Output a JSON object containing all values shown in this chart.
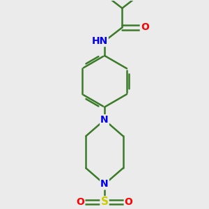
{
  "bg_color": "#ebebeb",
  "bond_color": "#3a7a28",
  "bond_width": 1.8,
  "atom_colors": {
    "N": "#0000ee",
    "O": "#ff0000",
    "S": "#cccc00",
    "H": "#555555",
    "C": "#3a7a28"
  },
  "font_size": 10,
  "fig_size": [
    3.0,
    3.0
  ],
  "dpi": 100
}
